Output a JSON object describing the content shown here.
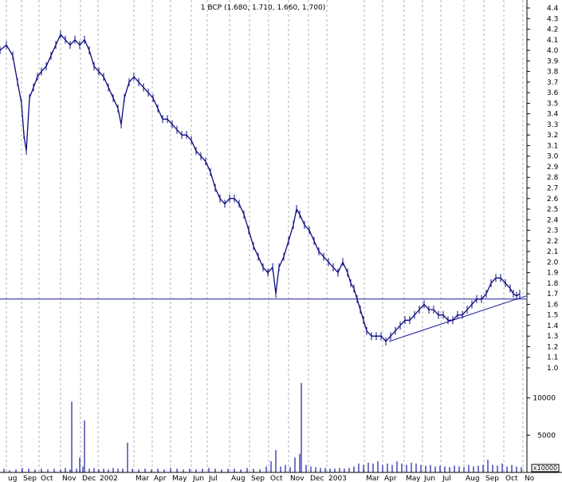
{
  "chart_data": {
    "type": "line",
    "title": "1 BCP (1.680, 1.710, 1.660, 1.700)",
    "xlabel": "",
    "ylabel": "",
    "price_ylim": [
      1.0,
      4.4
    ],
    "price_ticks": [
      "4.4",
      "4.3",
      "4.2",
      "4.1",
      "4.0",
      "3.9",
      "3.8",
      "3.7",
      "3.6",
      "3.5",
      "3.4",
      "3.3",
      "3.2",
      "3.1",
      "3.0",
      "2.9",
      "2.8",
      "2.7",
      "2.6",
      "2.5",
      "2.4",
      "2.3",
      "2.2",
      "2.1",
      "2.0",
      "1.9",
      "1.8",
      "1.7",
      "1.6",
      "1.5",
      "1.4",
      "1.3",
      "1.2",
      "1.1",
      "1.0"
    ],
    "volume_ticks": [
      "10000",
      "5000"
    ],
    "volume_multiplier": "x10000",
    "month_labels": [
      "ug",
      "Sep",
      "Oct",
      "Nov",
      "Dec",
      "2002",
      "Mar",
      "Apr",
      "May",
      "Jun",
      "Jul",
      "Aug",
      "Sep",
      "Oct",
      "Nov",
      "Dec",
      "2003",
      "Mar",
      "Apr",
      "May",
      "Jun",
      "Jul",
      "Aug",
      "Sep",
      "Oct",
      "No"
    ],
    "grid": true,
    "price_points": [
      [
        0,
        4.0
      ],
      [
        8,
        4.05
      ],
      [
        16,
        3.95
      ],
      [
        22,
        3.7
      ],
      [
        27,
        3.5
      ],
      [
        30,
        3.2
      ],
      [
        33,
        3.05
      ],
      [
        37,
        3.55
      ],
      [
        42,
        3.65
      ],
      [
        47,
        3.75
      ],
      [
        52,
        3.8
      ],
      [
        58,
        3.85
      ],
      [
        64,
        3.95
      ],
      [
        70,
        4.05
      ],
      [
        76,
        4.15
      ],
      [
        82,
        4.1
      ],
      [
        88,
        4.05
      ],
      [
        94,
        4.1
      ],
      [
        100,
        4.05
      ],
      [
        106,
        4.1
      ],
      [
        112,
        4.0
      ],
      [
        118,
        3.85
      ],
      [
        124,
        3.8
      ],
      [
        130,
        3.75
      ],
      [
        136,
        3.65
      ],
      [
        142,
        3.55
      ],
      [
        148,
        3.45
      ],
      [
        152,
        3.3
      ],
      [
        156,
        3.55
      ],
      [
        162,
        3.7
      ],
      [
        168,
        3.75
      ],
      [
        174,
        3.7
      ],
      [
        180,
        3.65
      ],
      [
        186,
        3.6
      ],
      [
        192,
        3.55
      ],
      [
        198,
        3.45
      ],
      [
        204,
        3.35
      ],
      [
        210,
        3.35
      ],
      [
        216,
        3.3
      ],
      [
        222,
        3.25
      ],
      [
        228,
        3.2
      ],
      [
        234,
        3.2
      ],
      [
        240,
        3.15
      ],
      [
        246,
        3.05
      ],
      [
        252,
        3.0
      ],
      [
        258,
        2.95
      ],
      [
        264,
        2.85
      ],
      [
        270,
        2.7
      ],
      [
        276,
        2.6
      ],
      [
        282,
        2.55
      ],
      [
        288,
        2.6
      ],
      [
        294,
        2.6
      ],
      [
        300,
        2.55
      ],
      [
        306,
        2.45
      ],
      [
        312,
        2.3
      ],
      [
        318,
        2.15
      ],
      [
        324,
        2.05
      ],
      [
        330,
        1.95
      ],
      [
        336,
        1.9
      ],
      [
        342,
        1.95
      ],
      [
        346,
        1.7
      ],
      [
        350,
        1.95
      ],
      [
        356,
        2.05
      ],
      [
        362,
        2.2
      ],
      [
        368,
        2.35
      ],
      [
        372,
        2.5
      ],
      [
        376,
        2.45
      ],
      [
        382,
        2.35
      ],
      [
        388,
        2.3
      ],
      [
        394,
        2.2
      ],
      [
        400,
        2.1
      ],
      [
        406,
        2.05
      ],
      [
        412,
        2.0
      ],
      [
        418,
        1.95
      ],
      [
        424,
        1.9
      ],
      [
        430,
        2.0
      ],
      [
        436,
        1.9
      ],
      [
        440,
        1.8
      ],
      [
        444,
        1.75
      ],
      [
        448,
        1.65
      ],
      [
        452,
        1.55
      ],
      [
        456,
        1.45
      ],
      [
        460,
        1.35
      ],
      [
        466,
        1.3
      ],
      [
        472,
        1.3
      ],
      [
        478,
        1.3
      ],
      [
        484,
        1.25
      ],
      [
        490,
        1.3
      ],
      [
        496,
        1.35
      ],
      [
        502,
        1.4
      ],
      [
        508,
        1.45
      ],
      [
        514,
        1.45
      ],
      [
        520,
        1.5
      ],
      [
        526,
        1.55
      ],
      [
        532,
        1.6
      ],
      [
        538,
        1.55
      ],
      [
        544,
        1.55
      ],
      [
        550,
        1.5
      ],
      [
        556,
        1.5
      ],
      [
        562,
        1.45
      ],
      [
        568,
        1.45
      ],
      [
        574,
        1.5
      ],
      [
        580,
        1.5
      ],
      [
        586,
        1.55
      ],
      [
        592,
        1.6
      ],
      [
        598,
        1.65
      ],
      [
        604,
        1.65
      ],
      [
        610,
        1.7
      ],
      [
        616,
        1.8
      ],
      [
        622,
        1.85
      ],
      [
        628,
        1.85
      ],
      [
        634,
        1.8
      ],
      [
        640,
        1.75
      ],
      [
        644,
        1.7
      ],
      [
        648,
        1.68
      ],
      [
        652,
        1.7
      ]
    ],
    "support_line": [
      [
        0,
        1.65
      ],
      [
        660,
        1.65
      ]
    ],
    "trend_line": [
      [
        488,
        1.25
      ],
      [
        660,
        1.68
      ]
    ],
    "volume_bars": [
      [
        5,
        0.05
      ],
      [
        12,
        0.03
      ],
      [
        20,
        0.04
      ],
      [
        28,
        0.06
      ],
      [
        36,
        0.05
      ],
      [
        44,
        0.04
      ],
      [
        52,
        0.05
      ],
      [
        60,
        0.04
      ],
      [
        68,
        0.05
      ],
      [
        76,
        0.04
      ],
      [
        82,
        0.06
      ],
      [
        88,
        0.04
      ],
      [
        90,
        0.95
      ],
      [
        96,
        0.05
      ],
      [
        100,
        0.2
      ],
      [
        104,
        0.08
      ],
      [
        106,
        0.7
      ],
      [
        112,
        0.05
      ],
      [
        118,
        0.06
      ],
      [
        124,
        0.04
      ],
      [
        130,
        0.05
      ],
      [
        136,
        0.04
      ],
      [
        142,
        0.06
      ],
      [
        148,
        0.05
      ],
      [
        154,
        0.05
      ],
      [
        160,
        0.4
      ],
      [
        166,
        0.05
      ],
      [
        174,
        0.04
      ],
      [
        182,
        0.05
      ],
      [
        190,
        0.04
      ],
      [
        198,
        0.05
      ],
      [
        206,
        0.04
      ],
      [
        214,
        0.06
      ],
      [
        222,
        0.05
      ],
      [
        230,
        0.04
      ],
      [
        238,
        0.05
      ],
      [
        246,
        0.04
      ],
      [
        254,
        0.05
      ],
      [
        262,
        0.06
      ],
      [
        270,
        0.05
      ],
      [
        278,
        0.04
      ],
      [
        286,
        0.05
      ],
      [
        294,
        0.05
      ],
      [
        302,
        0.04
      ],
      [
        310,
        0.06
      ],
      [
        318,
        0.05
      ],
      [
        326,
        0.04
      ],
      [
        334,
        0.08
      ],
      [
        340,
        0.15
      ],
      [
        346,
        0.3
      ],
      [
        352,
        0.08
      ],
      [
        358,
        0.1
      ],
      [
        364,
        0.07
      ],
      [
        370,
        0.2
      ],
      [
        376,
        0.25
      ],
      [
        378,
        1.2
      ],
      [
        384,
        0.1
      ],
      [
        390,
        0.08
      ],
      [
        396,
        0.07
      ],
      [
        402,
        0.06
      ],
      [
        408,
        0.06
      ],
      [
        414,
        0.05
      ],
      [
        420,
        0.05
      ],
      [
        426,
        0.06
      ],
      [
        432,
        0.05
      ],
      [
        438,
        0.06
      ],
      [
        444,
        0.08
      ],
      [
        450,
        0.12
      ],
      [
        456,
        0.1
      ],
      [
        462,
        0.13
      ],
      [
        468,
        0.12
      ],
      [
        474,
        0.15
      ],
      [
        480,
        0.1
      ],
      [
        486,
        0.12
      ],
      [
        492,
        0.1
      ],
      [
        498,
        0.15
      ],
      [
        504,
        0.12
      ],
      [
        510,
        0.1
      ],
      [
        516,
        0.13
      ],
      [
        522,
        0.12
      ],
      [
        528,
        0.1
      ],
      [
        534,
        0.09
      ],
      [
        540,
        0.1
      ],
      [
        546,
        0.08
      ],
      [
        552,
        0.09
      ],
      [
        558,
        0.08
      ],
      [
        564,
        0.07
      ],
      [
        570,
        0.09
      ],
      [
        576,
        0.08
      ],
      [
        582,
        0.07
      ],
      [
        588,
        0.1
      ],
      [
        594,
        0.08
      ],
      [
        600,
        0.09
      ],
      [
        606,
        0.1
      ],
      [
        612,
        0.17
      ],
      [
        618,
        0.1
      ],
      [
        624,
        0.09
      ],
      [
        630,
        0.12
      ],
      [
        636,
        0.08
      ],
      [
        642,
        0.1
      ],
      [
        648,
        0.08
      ],
      [
        654,
        0.07
      ]
    ]
  }
}
